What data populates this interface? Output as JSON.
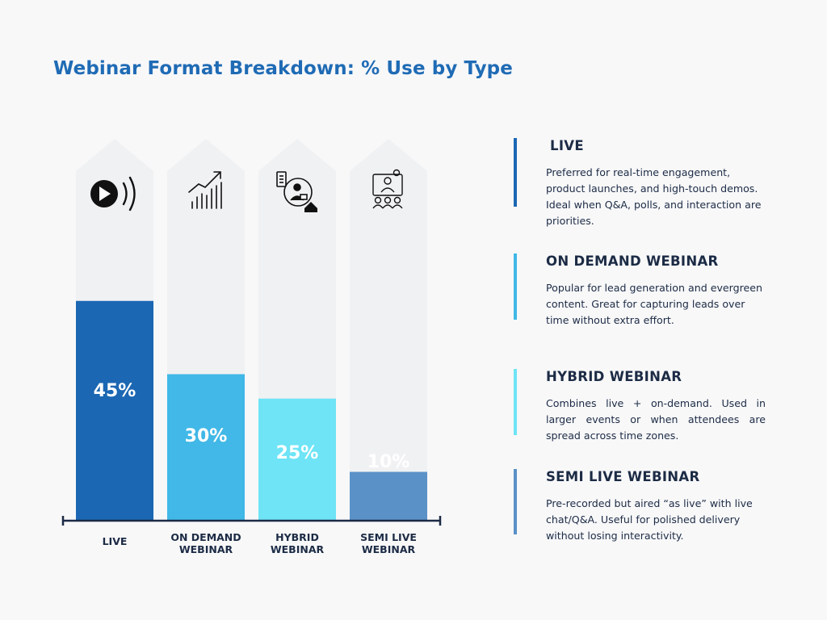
{
  "title": "Webinar Format Breakdown: % Use by Type",
  "chart_data": {
    "type": "bar",
    "categories": [
      [
        "LIVE"
      ],
      [
        "ON DEMAND",
        "WEBINAR"
      ],
      [
        "HYBRID",
        "WEBINAR"
      ],
      [
        "SEMI LIVE",
        "WEBINAR"
      ]
    ],
    "values": [
      45,
      30,
      25,
      10
    ],
    "value_labels": [
      "45%",
      "30%",
      "25%",
      "10%"
    ],
    "icons": [
      "play-broadcast-icon",
      "growth-chart-icon",
      "remote-work-icon",
      "audience-presenter-icon"
    ],
    "colors": [
      "#1b67b3",
      "#41b8e7",
      "#6ee4f6",
      "#5a91c7"
    ],
    "track_color": "#f0f1f3",
    "axis_color": "#1c2b45"
  },
  "descriptions": [
    {
      "title": "LIVE",
      "text": "Preferred for real-time engagement, product launches, and high-touch demos. Ideal when Q&A, polls, and interaction are priorities.",
      "color": "#1b67b3"
    },
    {
      "title": "ON DEMAND WEBINAR",
      "text": "Popular for lead generation and evergreen content. Great for capturing leads over time without extra effort.",
      "color": "#41b8e7"
    },
    {
      "title": "HYBRID WEBINAR",
      "text": "Combines live + on-demand. Used in larger events or when attendees are spread across time zones.",
      "color": "#6ee4f6"
    },
    {
      "title": "SEMI LIVE WEBINAR",
      "text": "Pre-recorded but aired “as live” with live chat/Q&A. Useful for polished delivery without losing interactivity.",
      "color": "#5a91c7"
    }
  ]
}
